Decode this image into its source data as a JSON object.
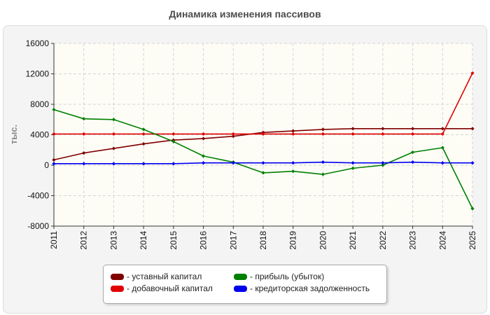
{
  "chart_data": {
    "type": "line",
    "title": "Динамика изменения пассивов",
    "ylabel": "тыс.",
    "xlabel": "",
    "x": [
      "2011",
      "2012",
      "2013",
      "2014",
      "2015",
      "2016",
      "2017",
      "2018",
      "2019",
      "2020",
      "2021",
      "2022",
      "2023",
      "2024",
      "2025"
    ],
    "ylim": [
      -8000,
      16000
    ],
    "yticks": [
      16000,
      12000,
      8000,
      4000,
      0,
      -4000,
      -8000
    ],
    "ytick_labels": [
      "16000",
      "12000",
      "8000",
      "4000",
      "0",
      "-4000",
      "-8000"
    ],
    "grid": true,
    "legend_position": "bottom",
    "series": [
      {
        "name": "- уставный капитал",
        "color": "#800000",
        "values": [
          700,
          1600,
          2200,
          2800,
          3300,
          3500,
          3800,
          4300,
          4500,
          4700,
          4800,
          4800,
          4800,
          4800,
          4800
        ]
      },
      {
        "name": "- добавочный капитал",
        "color": "#e00000",
        "values": [
          4100,
          4100,
          4100,
          4100,
          4100,
          4100,
          4100,
          4100,
          4100,
          4100,
          4100,
          4100,
          4100,
          4100,
          12100
        ]
      },
      {
        "name": "- прибыль (убыток)",
        "color": "#008000",
        "values": [
          7300,
          6100,
          6000,
          4700,
          3100,
          1200,
          400,
          -1000,
          -800,
          -1200,
          -400,
          0,
          1700,
          2300,
          -5700
        ]
      },
      {
        "name": "- кредиторская задолженность",
        "color": "#0000ee",
        "values": [
          200,
          200,
          200,
          200,
          200,
          300,
          300,
          300,
          300,
          400,
          300,
          300,
          400,
          300,
          300
        ]
      }
    ]
  }
}
